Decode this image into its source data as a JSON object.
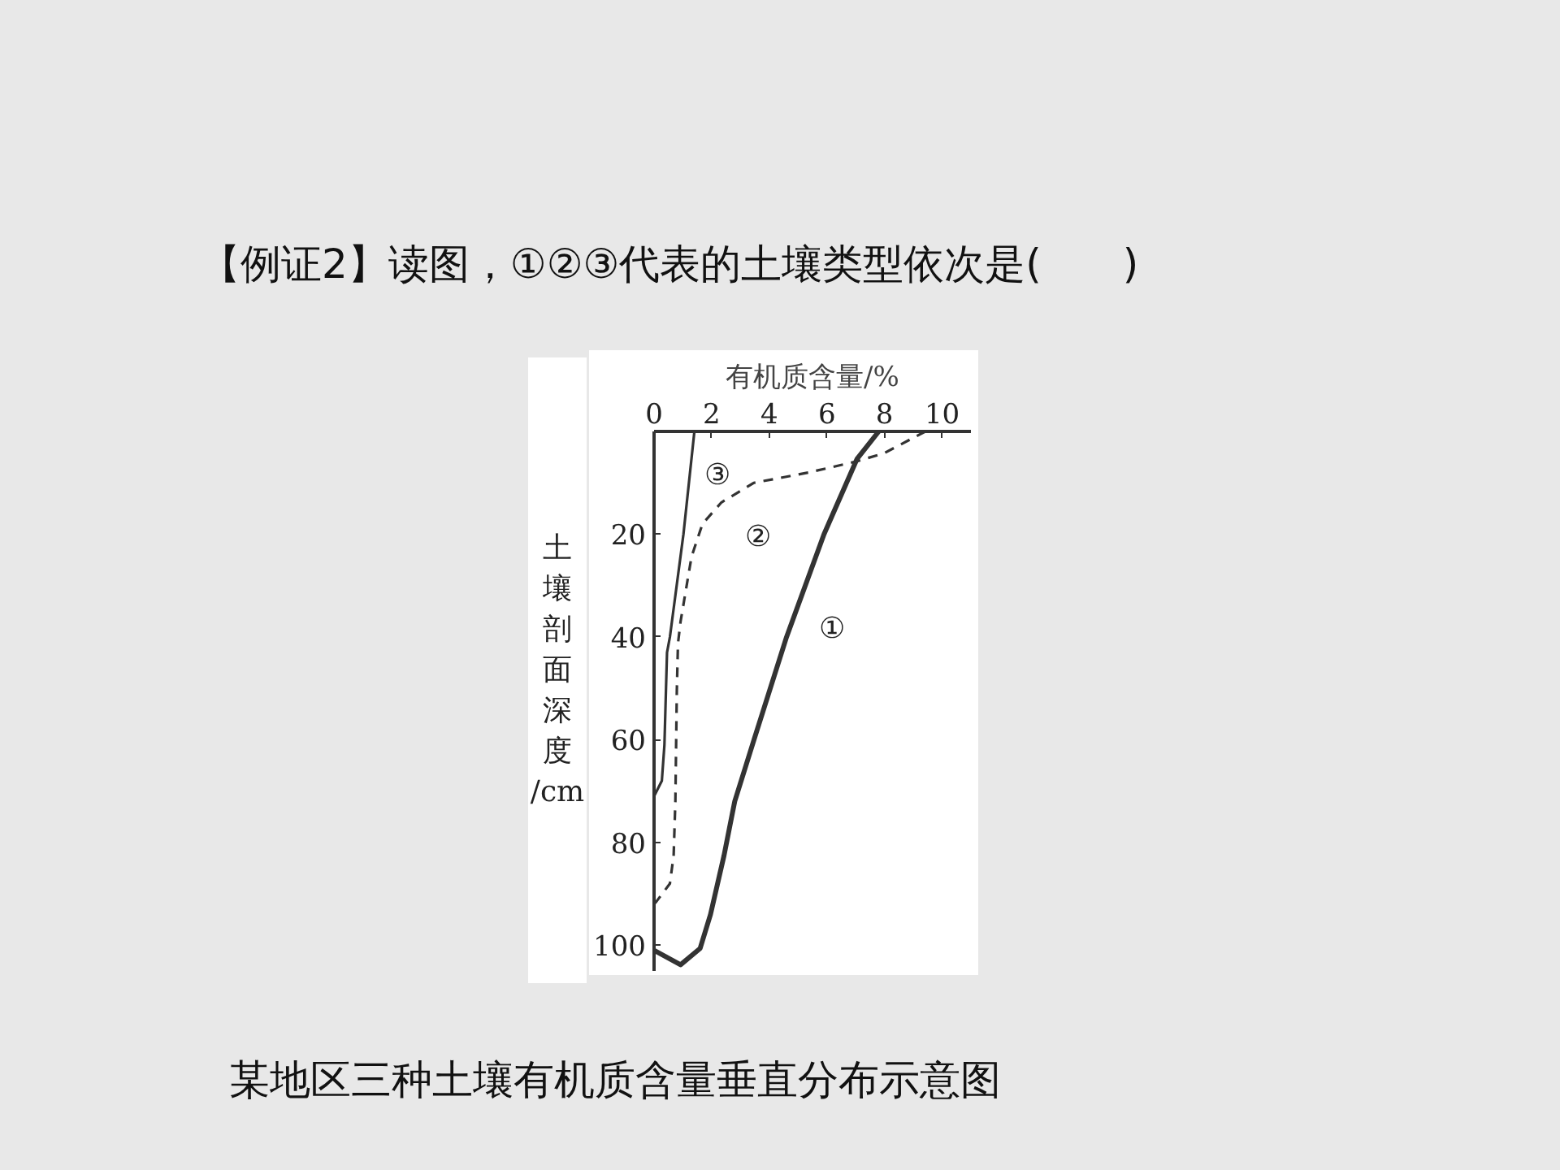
{
  "chart_data": {
    "type": "line",
    "title": "【例证2】读图，①②③代表的土壤类型依次是(　　)",
    "xlabel": "有机质含量/%",
    "ylabel": "土壤剖面深度/cm",
    "series": [
      {
        "name": "①",
        "color": "#333333",
        "line_style": "solid",
        "x": [
          7.8,
          7.05,
          5.9,
          4.6,
          3.47,
          2.8,
          2.43,
          1.96,
          1.6,
          0.92,
          0
        ],
        "values": [
          0,
          5.3,
          20,
          40,
          60,
          72,
          82.5,
          94,
          100.6,
          103.8,
          101
        ]
      },
      {
        "name": "②",
        "color": "#333333",
        "line_style": "dashed",
        "x": [
          9.42,
          8.0,
          7.05,
          5.36,
          3.47,
          2.34,
          1.68,
          1.3,
          0.92,
          0.83,
          0.79,
          0.74,
          0.68,
          0.55,
          0.08,
          0
        ],
        "values": [
          0,
          4.2,
          5.8,
          8,
          10,
          13.8,
          18,
          24.4,
          37,
          41.3,
          50.5,
          72,
          82.5,
          88,
          91.5,
          92
        ]
      },
      {
        "name": "③",
        "color": "#333333",
        "line_style": "solid",
        "x": [
          1.4,
          1.02,
          0.55,
          0.45,
          0.36,
          0.27,
          0
        ],
        "values": [
          0,
          20,
          40,
          43,
          61,
          68,
          71
        ]
      }
    ],
    "legend": false,
    "annotations": [
      "某地区三种土壤有机质含量垂直分布示意图"
    ],
    "xlim": [
      0,
      11
    ],
    "ylim": [
      105,
      0
    ],
    "xticks": [
      0,
      2,
      4,
      6,
      8,
      10
    ],
    "yticks": [
      20,
      40,
      60,
      80,
      100
    ],
    "grid": false,
    "marker": "none"
  }
}
